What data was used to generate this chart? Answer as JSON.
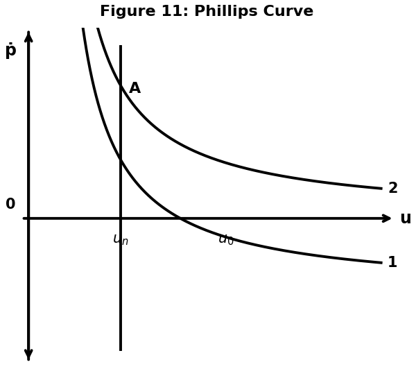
{
  "title": "Figure 11: Phillips Curve",
  "title_fontsize": 16,
  "title_fontweight": "bold",
  "background_color": "#ffffff",
  "curve_color": "#000000",
  "line_width": 2.8,
  "u_n": 0.28,
  "u_0": 0.6,
  "x_min": -0.05,
  "x_max": 1.05,
  "y_min": -0.55,
  "y_max": 0.72,
  "curve2_asymptote_x": 0.05,
  "curve2_asymptote_y": 0.0,
  "curve2_k": 0.115,
  "curve1_asymptote_x": 0.05,
  "curve1_asymptote_y": -0.28,
  "curve1_k": 0.115,
  "label_A": "A",
  "label_1": "1",
  "label_2": "2",
  "label_yaxis": "ṗ",
  "label_xaxis": "u",
  "label_zero": "0",
  "font_size_labels": 15,
  "font_size_axis_labels": 17,
  "font_size_subscript": 13
}
